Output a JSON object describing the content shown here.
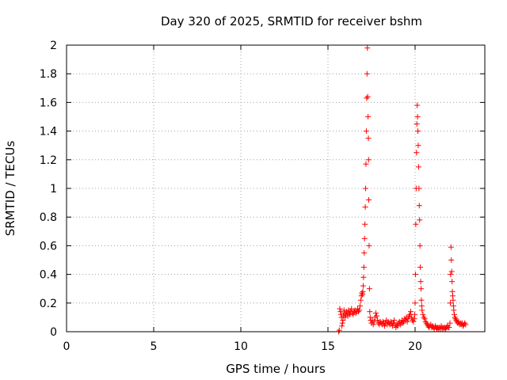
{
  "chart_data": {
    "type": "scatter",
    "title": "Day 320 of 2025, SRMTID for receiver bshm",
    "xlabel": "GPS time / hours",
    "ylabel": "SRMTID / TECUs",
    "xlim": [
      0,
      24
    ],
    "ylim": [
      0,
      2
    ],
    "x_ticks": [
      0,
      5,
      10,
      15,
      20
    ],
    "x_tick_labels": [
      "0",
      "5",
      "10",
      "15",
      "20"
    ],
    "y_ticks": [
      0,
      0.2,
      0.4,
      0.6,
      0.8,
      1,
      1.2,
      1.4,
      1.6,
      1.8,
      2
    ],
    "y_tick_labels": [
      "0",
      "0.2",
      "0.4",
      "0.6",
      "0.8",
      "1",
      "1.2",
      "1.4",
      "1.6",
      "1.8",
      "2"
    ],
    "grid": true,
    "marker": "+",
    "color": "#ff0000",
    "series": [
      {
        "name": "SRMTID",
        "points": [
          [
            15.62,
            0.0
          ],
          [
            15.65,
            0.01
          ],
          [
            15.68,
            0.16
          ],
          [
            15.72,
            0.14
          ],
          [
            15.75,
            0.12
          ],
          [
            15.78,
            0.1
          ],
          [
            15.8,
            0.04
          ],
          [
            15.83,
            0.06
          ],
          [
            15.86,
            0.08
          ],
          [
            15.89,
            0.11
          ],
          [
            15.92,
            0.15
          ],
          [
            15.95,
            0.13
          ],
          [
            15.98,
            0.1
          ],
          [
            16.02,
            0.12
          ],
          [
            16.06,
            0.14
          ],
          [
            16.1,
            0.13
          ],
          [
            16.14,
            0.11
          ],
          [
            16.18,
            0.15
          ],
          [
            16.22,
            0.13
          ],
          [
            16.26,
            0.12
          ],
          [
            16.3,
            0.14
          ],
          [
            16.35,
            0.16
          ],
          [
            16.4,
            0.13
          ],
          [
            16.45,
            0.12
          ],
          [
            16.5,
            0.14
          ],
          [
            16.55,
            0.15
          ],
          [
            16.6,
            0.13
          ],
          [
            16.65,
            0.14
          ],
          [
            16.7,
            0.16
          ],
          [
            16.75,
            0.14
          ],
          [
            16.8,
            0.15
          ],
          [
            16.84,
            0.18
          ],
          [
            16.88,
            0.22
          ],
          [
            16.92,
            0.25
          ],
          [
            16.95,
            0.27
          ],
          [
            16.98,
            0.26
          ],
          [
            17.0,
            0.28
          ],
          [
            17.02,
            0.32
          ],
          [
            17.04,
            0.38
          ],
          [
            17.06,
            0.45
          ],
          [
            17.08,
            0.55
          ],
          [
            17.1,
            0.65
          ],
          [
            17.12,
            0.75
          ],
          [
            17.14,
            0.87
          ],
          [
            17.16,
            1.0
          ],
          [
            17.18,
            1.17
          ],
          [
            17.2,
            1.4
          ],
          [
            17.22,
            1.63
          ],
          [
            17.24,
            1.8
          ],
          [
            17.26,
            1.98
          ],
          [
            17.28,
            1.64
          ],
          [
            17.3,
            1.5
          ],
          [
            17.32,
            1.35
          ],
          [
            17.33,
            1.2
          ],
          [
            17.34,
            0.92
          ],
          [
            17.36,
            0.6
          ],
          [
            17.38,
            0.3
          ],
          [
            17.4,
            0.14
          ],
          [
            17.42,
            0.1
          ],
          [
            17.45,
            0.08
          ],
          [
            17.5,
            0.06
          ],
          [
            17.55,
            0.08
          ],
          [
            17.6,
            0.05
          ],
          [
            17.65,
            0.07
          ],
          [
            17.7,
            0.1
          ],
          [
            17.75,
            0.13
          ],
          [
            17.8,
            0.11
          ],
          [
            17.85,
            0.08
          ],
          [
            17.9,
            0.06
          ],
          [
            17.95,
            0.05
          ],
          [
            18.0,
            0.07
          ],
          [
            18.05,
            0.06
          ],
          [
            18.1,
            0.05
          ],
          [
            18.15,
            0.07
          ],
          [
            18.2,
            0.06
          ],
          [
            18.25,
            0.04
          ],
          [
            18.3,
            0.06
          ],
          [
            18.35,
            0.08
          ],
          [
            18.4,
            0.05
          ],
          [
            18.45,
            0.07
          ],
          [
            18.5,
            0.06
          ],
          [
            18.55,
            0.05
          ],
          [
            18.6,
            0.07
          ],
          [
            18.65,
            0.06
          ],
          [
            18.7,
            0.04
          ],
          [
            18.75,
            0.06
          ],
          [
            18.8,
            0.08
          ],
          [
            18.85,
            0.05
          ],
          [
            18.9,
            0.03
          ],
          [
            18.95,
            0.05
          ],
          [
            19.0,
            0.04
          ],
          [
            19.05,
            0.06
          ],
          [
            19.1,
            0.07
          ],
          [
            19.15,
            0.05
          ],
          [
            19.2,
            0.06
          ],
          [
            19.25,
            0.08
          ],
          [
            19.3,
            0.06
          ],
          [
            19.35,
            0.07
          ],
          [
            19.4,
            0.09
          ],
          [
            19.45,
            0.08
          ],
          [
            19.5,
            0.1
          ],
          [
            19.55,
            0.07
          ],
          [
            19.6,
            0.09
          ],
          [
            19.65,
            0.11
          ],
          [
            19.7,
            0.12
          ],
          [
            19.75,
            0.14
          ],
          [
            19.8,
            0.1
          ],
          [
            19.85,
            0.08
          ],
          [
            19.9,
            0.07
          ],
          [
            19.95,
            0.09
          ],
          [
            19.98,
            0.12
          ],
          [
            20.0,
            0.2
          ],
          [
            20.02,
            0.4
          ],
          [
            20.04,
            0.75
          ],
          [
            20.06,
            1.0
          ],
          [
            20.08,
            1.25
          ],
          [
            20.1,
            1.45
          ],
          [
            20.12,
            1.58
          ],
          [
            20.14,
            1.5
          ],
          [
            20.16,
            1.4
          ],
          [
            20.18,
            1.3
          ],
          [
            20.2,
            1.15
          ],
          [
            20.22,
            1.0
          ],
          [
            20.24,
            0.88
          ],
          [
            20.26,
            0.78
          ],
          [
            20.28,
            0.6
          ],
          [
            20.3,
            0.45
          ],
          [
            20.32,
            0.35
          ],
          [
            20.34,
            0.3
          ],
          [
            20.36,
            0.22
          ],
          [
            20.38,
            0.18
          ],
          [
            20.4,
            0.15
          ],
          [
            20.45,
            0.12
          ],
          [
            20.5,
            0.1
          ],
          [
            20.55,
            0.09
          ],
          [
            20.6,
            0.07
          ],
          [
            20.65,
            0.06
          ],
          [
            20.7,
            0.05
          ],
          [
            20.75,
            0.04
          ],
          [
            20.8,
            0.03
          ],
          [
            20.85,
            0.04
          ],
          [
            20.9,
            0.05
          ],
          [
            20.95,
            0.03
          ],
          [
            21.0,
            0.04
          ],
          [
            21.05,
            0.03
          ],
          [
            21.1,
            0.02
          ],
          [
            21.15,
            0.04
          ],
          [
            21.2,
            0.03
          ],
          [
            21.25,
            0.02
          ],
          [
            21.3,
            0.03
          ],
          [
            21.35,
            0.02
          ],
          [
            21.4,
            0.03
          ],
          [
            21.45,
            0.02
          ],
          [
            21.5,
            0.04
          ],
          [
            21.55,
            0.02
          ],
          [
            21.6,
            0.03
          ],
          [
            21.65,
            0.02
          ],
          [
            21.7,
            0.03
          ],
          [
            21.75,
            0.02
          ],
          [
            21.8,
            0.03
          ],
          [
            21.85,
            0.04
          ],
          [
            21.9,
            0.03
          ],
          [
            21.95,
            0.03
          ],
          [
            22.0,
            0.06
          ],
          [
            22.02,
            0.2
          ],
          [
            22.04,
            0.4
          ],
          [
            22.06,
            0.59
          ],
          [
            22.08,
            0.5
          ],
          [
            22.1,
            0.42
          ],
          [
            22.12,
            0.35
          ],
          [
            22.14,
            0.28
          ],
          [
            22.16,
            0.25
          ],
          [
            22.18,
            0.22
          ],
          [
            22.2,
            0.18
          ],
          [
            22.22,
            0.15
          ],
          [
            22.25,
            0.12
          ],
          [
            22.28,
            0.1
          ],
          [
            22.32,
            0.09
          ],
          [
            22.36,
            0.08
          ],
          [
            22.4,
            0.07
          ],
          [
            22.45,
            0.06
          ],
          [
            22.5,
            0.07
          ],
          [
            22.55,
            0.05
          ],
          [
            22.6,
            0.06
          ],
          [
            22.65,
            0.05
          ],
          [
            22.7,
            0.06
          ],
          [
            22.75,
            0.04
          ],
          [
            22.8,
            0.05
          ],
          [
            22.85,
            0.06
          ],
          [
            22.9,
            0.05
          ]
        ]
      }
    ]
  }
}
